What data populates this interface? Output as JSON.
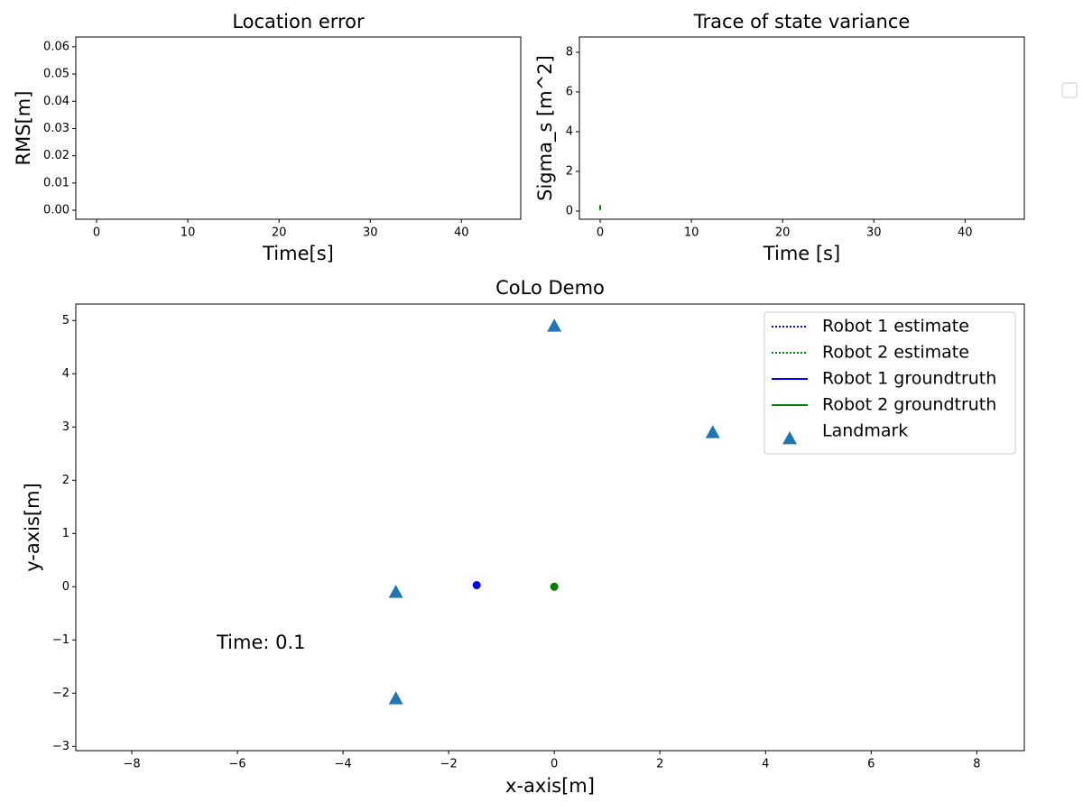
{
  "chart_data": [
    {
      "type": "line",
      "title": "Location error",
      "xlabel": "Time[s]",
      "ylabel": "RMS[m]",
      "xlim": [
        -2.28,
        46.5
      ],
      "ylim": [
        -0.0033,
        0.0636
      ],
      "xticks": [
        0,
        10,
        20,
        30,
        40
      ],
      "yticks": [
        {
          "value": 0,
          "label": "0.00"
        },
        {
          "value": 0.01,
          "label": "0.01"
        },
        {
          "value": 0.02,
          "label": "0.02"
        },
        {
          "value": 0.03,
          "label": "0.03"
        },
        {
          "value": 0.04,
          "label": "0.04"
        },
        {
          "value": 0.05,
          "label": "0.05"
        },
        {
          "value": 0.06,
          "label": "0.06"
        }
      ],
      "series": []
    },
    {
      "type": "line",
      "title": "Trace of state variance",
      "xlabel": "Time [s]",
      "ylabel": "Sigma_s [m^2]",
      "xlim": [
        -2.28,
        46.5
      ],
      "ylim": [
        -0.41,
        8.77
      ],
      "xticks": [
        0,
        10,
        20,
        30,
        40
      ],
      "yticks": [
        0,
        2,
        4,
        6,
        8
      ],
      "series": [
        {
          "color": "green",
          "x": [
            0,
            0
          ],
          "values": [
            0.05,
            0.3
          ]
        }
      ]
    },
    {
      "type": "scatter",
      "title": "CoLo Demo",
      "xlabel": "x-axis[m]",
      "ylabel": "y-axis[m]",
      "xlim": [
        -9.06,
        8.9
      ],
      "ylim": [
        -3.08,
        5.31
      ],
      "xticks": [
        {
          "value": -8,
          "label": "−8"
        },
        {
          "value": -6,
          "label": "−6"
        },
        {
          "value": -4,
          "label": "−4"
        },
        {
          "value": -2,
          "label": "−2"
        },
        0,
        2,
        4,
        6,
        8
      ],
      "yticks": [
        {
          "value": -3,
          "label": "−3"
        },
        {
          "value": -2,
          "label": "−2"
        },
        {
          "value": -1,
          "label": "−1"
        },
        0,
        1,
        2,
        3,
        4,
        5
      ],
      "legend": "upper right",
      "annotation": "Time: 0.1",
      "series": [
        {
          "name": "Robot 1 estimate",
          "color": "blue",
          "linestyle": "dotted",
          "x": [],
          "values": []
        },
        {
          "name": "Robot 2 estimate",
          "color": "green",
          "linestyle": "dotted",
          "x": [],
          "values": []
        },
        {
          "name": "Robot 1 groundtruth",
          "color": "blue",
          "linestyle": "solid",
          "x": [
            -1.47
          ],
          "values": [
            0.03
          ]
        },
        {
          "name": "Robot 2 groundtruth",
          "color": "green",
          "linestyle": "solid",
          "x": [
            0
          ],
          "values": [
            0
          ]
        },
        {
          "name": "Landmark",
          "color": "#1f77b4",
          "marker": "triangle",
          "x": [
            0,
            3,
            -3,
            -3
          ],
          "values": [
            4.9,
            2.9,
            -0.1,
            -2.1
          ]
        }
      ]
    }
  ]
}
